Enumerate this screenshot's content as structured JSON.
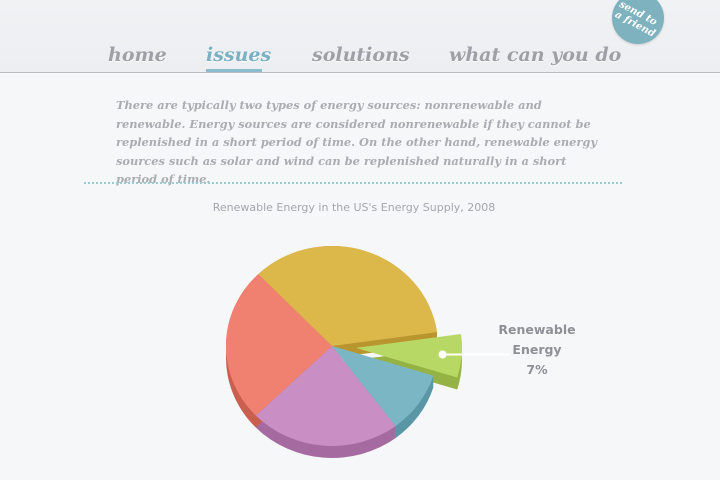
{
  "nav": {
    "items": [
      {
        "label": "home",
        "active": false
      },
      {
        "label": "issues",
        "active": true
      },
      {
        "label": "solutions",
        "active": false
      },
      {
        "label": "what can you do",
        "active": false
      }
    ]
  },
  "send_badge": {
    "line1": "send to",
    "line2": "a friend"
  },
  "intro_text": "There are typically two types of energy sources: nonrenewable and renewable. Energy sources are considered nonrenewable if they cannot be replenished in a short period of time. On the other hand, renewable energy sources such as solar and wind can be replenished naturally in a short period of time.",
  "colors": {
    "accent": "#7ab0c2",
    "nav_text": "#9da1a7",
    "label_text": "#8d9096"
  },
  "chart_data": {
    "type": "pie",
    "title": "Renewable Energy in the US's Energy Supply, 2008",
    "slices": [
      {
        "value": 7,
        "color": "#b8d866",
        "side": "#94b344",
        "exploded": true
      },
      {
        "value": 10,
        "color": "#7bb6c5",
        "side": "#5a97a6",
        "exploded": false
      },
      {
        "value": 23,
        "color": "#c98fc4",
        "side": "#a56ba1",
        "exploded": false
      },
      {
        "value": 25,
        "color": "#f0806f",
        "side": "#c9604f",
        "exploded": false
      },
      {
        "value": 35,
        "color": "#dcb84b",
        "side": "#b8952f",
        "exploded": false
      }
    ],
    "annotation": {
      "line1": "Renewable",
      "line2": "Energy",
      "value": "7%"
    }
  }
}
